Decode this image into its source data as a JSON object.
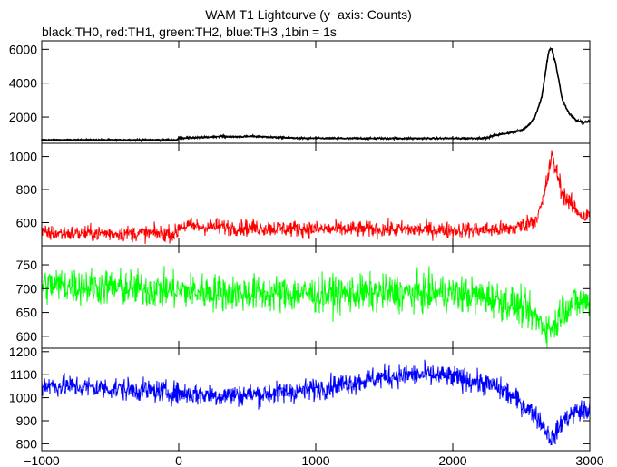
{
  "chart_data": {
    "type": "line",
    "title": "WAM T1 Lightcurve (y−axis: Counts)",
    "subtitle": "black:TH0, red:TH1, green:TH2, blue:TH3 ,1bin = 1s",
    "xlim": [
      -1000,
      3000
    ],
    "xticks": [
      -1000,
      0,
      1000,
      2000,
      3000
    ],
    "xtick_labels": [
      "−1000",
      "0",
      "1000",
      "2000",
      "3000"
    ],
    "panels": [
      {
        "series": "TH0",
        "color": "#000000",
        "ylim": [
          450,
          6500
        ],
        "yticks": [
          2000,
          4000,
          6000
        ],
        "noise": 25,
        "points": [
          [
            -1000,
            650
          ],
          [
            -10,
            650
          ],
          [
            0,
            760
          ],
          [
            200,
            800
          ],
          [
            300,
            860
          ],
          [
            400,
            830
          ],
          [
            550,
            860
          ],
          [
            700,
            800
          ],
          [
            900,
            750
          ],
          [
            1200,
            740
          ],
          [
            1500,
            740
          ],
          [
            1800,
            740
          ],
          [
            2100,
            740
          ],
          [
            2250,
            760
          ],
          [
            2300,
            900
          ],
          [
            2400,
            1050
          ],
          [
            2500,
            1200
          ],
          [
            2550,
            1500
          ],
          [
            2600,
            2000
          ],
          [
            2650,
            3200
          ],
          [
            2700,
            5900
          ],
          [
            2720,
            6050
          ],
          [
            2750,
            5200
          ],
          [
            2800,
            3000
          ],
          [
            2850,
            2200
          ],
          [
            2900,
            1800
          ],
          [
            2950,
            1700
          ],
          [
            3000,
            1750
          ]
        ]
      },
      {
        "series": "TH1",
        "color": "#ff0000",
        "ylim": [
          460,
          1080
        ],
        "yticks": [
          600,
          800,
          1000
        ],
        "noise": 35,
        "points": [
          [
            -1000,
            535
          ],
          [
            -10,
            535
          ],
          [
            0,
            580
          ],
          [
            500,
            570
          ],
          [
            1000,
            560
          ],
          [
            1500,
            560
          ],
          [
            2000,
            555
          ],
          [
            2200,
            555
          ],
          [
            2400,
            560
          ],
          [
            2500,
            580
          ],
          [
            2600,
            620
          ],
          [
            2650,
            700
          ],
          [
            2700,
            900
          ],
          [
            2720,
            1000
          ],
          [
            2750,
            930
          ],
          [
            2800,
            780
          ],
          [
            2850,
            720
          ],
          [
            2900,
            680
          ],
          [
            2950,
            640
          ],
          [
            3000,
            640
          ]
        ]
      },
      {
        "series": "TH2",
        "color": "#00ff00",
        "ylim": [
          575,
          790
        ],
        "yticks": [
          600,
          650,
          700,
          750
        ],
        "noise": 28,
        "points": [
          [
            -1000,
            708
          ],
          [
            -700,
            705
          ],
          [
            -300,
            700
          ],
          [
            0,
            695
          ],
          [
            500,
            690
          ],
          [
            1000,
            688
          ],
          [
            1500,
            690
          ],
          [
            2000,
            690
          ],
          [
            2300,
            680
          ],
          [
            2500,
            660
          ],
          [
            2600,
            640
          ],
          [
            2700,
            615
          ],
          [
            2750,
            625
          ],
          [
            2800,
            660
          ],
          [
            2900,
            670
          ],
          [
            3000,
            672
          ]
        ]
      },
      {
        "series": "TH3",
        "color": "#0000ff",
        "ylim": [
          770,
          1215
        ],
        "yticks": [
          800,
          900,
          1000,
          1100,
          1200
        ],
        "noise": 35,
        "points": [
          [
            -1000,
            1055
          ],
          [
            -800,
            1050
          ],
          [
            -500,
            1040
          ],
          [
            -200,
            1030
          ],
          [
            0,
            1020
          ],
          [
            300,
            1010
          ],
          [
            600,
            1015
          ],
          [
            900,
            1030
          ],
          [
            1200,
            1060
          ],
          [
            1500,
            1090
          ],
          [
            1700,
            1100
          ],
          [
            1900,
            1095
          ],
          [
            2100,
            1080
          ],
          [
            2300,
            1050
          ],
          [
            2400,
            1020
          ],
          [
            2500,
            975
          ],
          [
            2600,
            930
          ],
          [
            2680,
            860
          ],
          [
            2720,
            820
          ],
          [
            2760,
            850
          ],
          [
            2800,
            900
          ],
          [
            2900,
            940
          ],
          [
            3000,
            945
          ]
        ]
      }
    ]
  }
}
